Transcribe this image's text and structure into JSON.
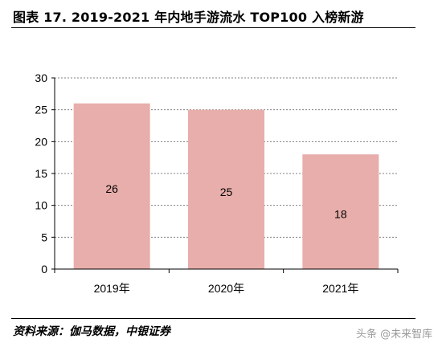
{
  "title": "图表 17. 2019-2021 年内地手游流水 TOP100 入榜新游",
  "source": "资料来源：伽马数据，中银证券",
  "watermark": "头条 @未来智库",
  "colors": {
    "bar": "#e8aeab",
    "grid": "#808080",
    "axis": "#000000",
    "text": "#000000"
  },
  "chart_data": {
    "type": "bar",
    "categories": [
      "2019年",
      "2020年",
      "2021年"
    ],
    "values": [
      26,
      25,
      18
    ],
    "data_labels": [
      "26",
      "25",
      "18"
    ],
    "ylim": [
      0,
      30
    ],
    "yticks": [
      0,
      5,
      10,
      15,
      20,
      25,
      30
    ],
    "ytick_labels": [
      "0",
      "5",
      "10",
      "15",
      "20",
      "25",
      "30"
    ],
    "grid": true,
    "legend": "none"
  }
}
